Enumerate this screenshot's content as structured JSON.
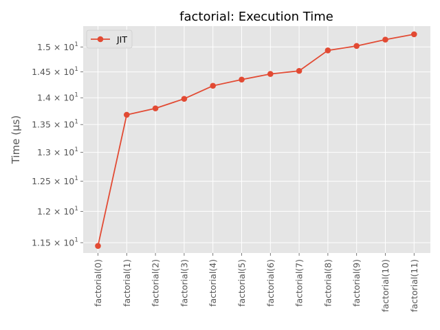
{
  "chart_data": {
    "type": "line",
    "title": "factorial: Execution Time",
    "xlabel": "",
    "ylabel": "Time (µs)",
    "yscale": "log",
    "grid": true,
    "legend_placement": "top-left",
    "categories": [
      "factorial(0)",
      "factorial(1)",
      "factorial(2)",
      "factorial(3)",
      "factorial(4)",
      "factorial(5)",
      "factorial(6)",
      "factorial(7)",
      "factorial(8)",
      "factorial(9)",
      "factorial(10)",
      "factorial(11)"
    ],
    "series": [
      {
        "name": "JIT",
        "color": "#E24A33",
        "values": [
          11.45,
          13.68,
          13.8,
          13.98,
          14.23,
          14.35,
          14.46,
          14.52,
          14.93,
          15.02,
          15.15,
          15.26
        ]
      }
    ],
    "yticks": [
      {
        "value": 11.5,
        "mantissa": "1.15",
        "exponent": "1"
      },
      {
        "value": 12.0,
        "mantissa": "1.2",
        "exponent": "1"
      },
      {
        "value": 12.5,
        "mantissa": "1.25",
        "exponent": "1"
      },
      {
        "value": 13.0,
        "mantissa": "1.3",
        "exponent": "1"
      },
      {
        "value": 13.5,
        "mantissa": "1.35",
        "exponent": "1"
      },
      {
        "value": 14.0,
        "mantissa": "1.4",
        "exponent": "1"
      },
      {
        "value": 14.5,
        "mantissa": "1.45",
        "exponent": "1"
      },
      {
        "value": 15.0,
        "mantissa": "1.5",
        "exponent": "1"
      }
    ],
    "ylim": [
      11.34,
      15.43
    ],
    "background": "#E5E5E5",
    "grid_color": "#FFFFFF"
  }
}
